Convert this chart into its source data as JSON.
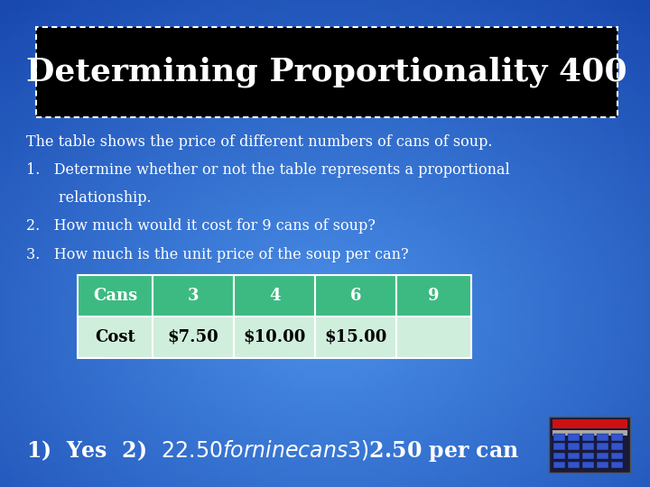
{
  "title": "Determining Proportionality 400",
  "bg_color": "#2a6fd4",
  "title_bg": "#000000",
  "title_text_color": "#ffffff",
  "body_text_color": "#ffffff",
  "body_lines": [
    "The table shows the price of different numbers of cans of soup.",
    "1.   Determine whether or not the table represents a proportional",
    "       relationship.",
    "2.   How much would it cost for 9 cans of soup?",
    "3.   How much is the unit price of the soup per can?"
  ],
  "table_header": [
    "Cans",
    "3",
    "4",
    "6",
    "9"
  ],
  "table_row": [
    "Cost",
    "$7.50",
    "$10.00",
    "$15.00",
    ""
  ],
  "table_header_bg": "#3dba82",
  "table_row_bg": "#d0eedc",
  "table_text_color": "#000000",
  "answer_text": "1)  Yes  2)  $22.50 for nine cans  3)  $2.50 per can",
  "answer_text_color": "#ffffff",
  "answer_fontsize": 17,
  "title_fontsize": 26,
  "body_fontsize": 11.5
}
